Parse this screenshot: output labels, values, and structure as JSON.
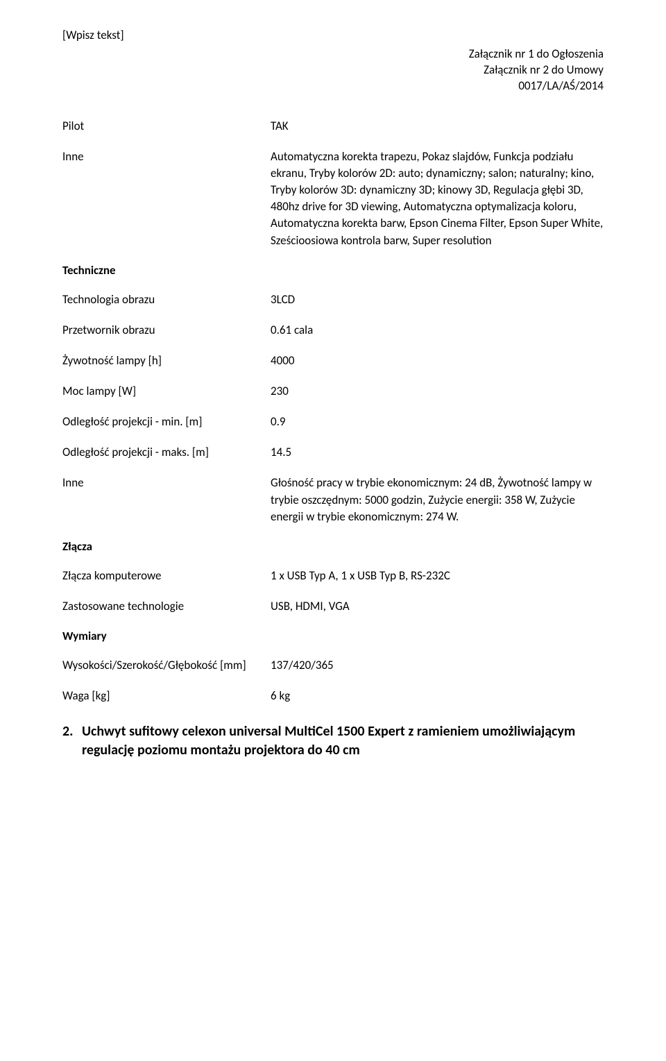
{
  "header_left": "[Wpisz tekst]",
  "header_right": {
    "l1": "Załącznik nr 1 do Ogłoszenia",
    "l2": "Załącznik nr 2 do Umowy",
    "l3": "0017/LA/AŚ/2014"
  },
  "rows_top": [
    {
      "label": "Pilot",
      "value": "TAK"
    },
    {
      "label": "Inne",
      "value": "Automatyczna korekta trapezu, Pokaz slajdów, Funkcja podziału ekranu, Tryby kolorów 2D: auto; dynamiczny; salon; naturalny; kino, Tryby kolorów 3D: dynamiczny 3D; kinowy 3D, Regulacja głębi 3D, 480hz drive for 3D viewing, Automatyczna optymalizacja koloru, Automatyczna korekta barw, Epson Cinema Filter, Epson Super White, Sześcioosiowa kontrola barw, Super resolution"
    }
  ],
  "sections": {
    "techniczne": "Techniczne",
    "zlacza": "Złącza",
    "wymiary": "Wymiary"
  },
  "rows_techniczne": [
    {
      "label": "Technologia obrazu",
      "value": "3LCD"
    },
    {
      "label": "Przetwornik obrazu",
      "value": "0.61 cala"
    },
    {
      "label": "Żywotność lampy [h]",
      "value": "4000"
    },
    {
      "label": "Moc lampy [W]",
      "value": "230"
    },
    {
      "label": "Odległość projekcji - min. [m]",
      "value": "0.9"
    },
    {
      "label": "Odległość projekcji - maks. [m]",
      "value": "14.5"
    },
    {
      "label": "Inne",
      "value": "Głośność pracy w trybie ekonomicznym: 24 dB, Żywotność lampy w trybie oszczędnym: 5000 godzin, Zużycie energii: 358 W, Zużycie energii w trybie ekonomicznym: 274 W."
    }
  ],
  "rows_zlacza": [
    {
      "label": "Złącza komputerowe",
      "value": "1 x USB Typ A, 1 x USB Typ B, RS-232C"
    },
    {
      "label": "Zastosowane technologie",
      "value": "USB, HDMI, VGA"
    }
  ],
  "rows_wymiary": [
    {
      "label": "Wysokości/Szerokość/Głębokość [mm]",
      "value": "137/420/365"
    },
    {
      "label": "Waga [kg]",
      "value": "6 kg"
    }
  ],
  "ordered": {
    "num": "2.",
    "text": "Uchwyt sufitowy celexon universal MultiCel 1500 Expert z ramieniem umożliwiającym regulację poziomu montażu projektora do 40 cm"
  }
}
